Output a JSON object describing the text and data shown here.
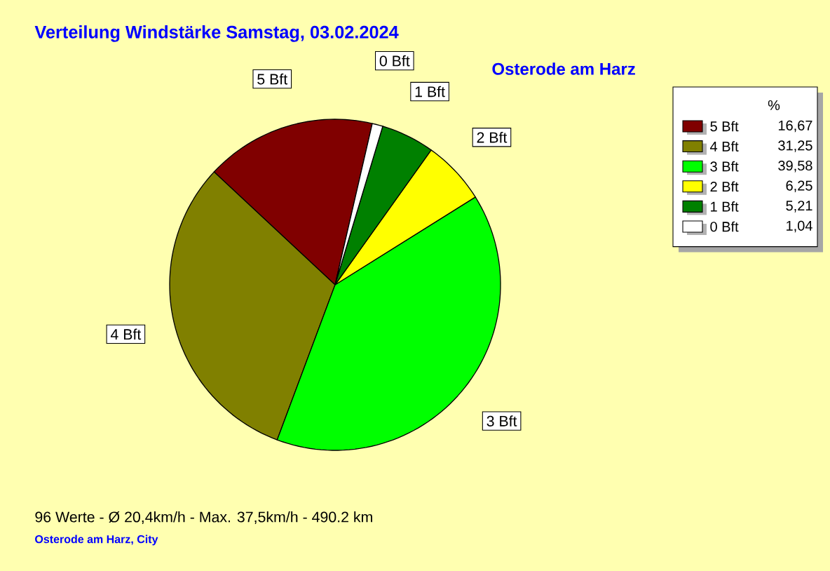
{
  "chart_data": {
    "type": "pie",
    "title": "Verteilung Windstärke  Samstag, 03.02.2024",
    "subtitle": "Osterode am Harz",
    "legend_title": "%",
    "categories": [
      "5 Bft",
      "4 Bft",
      "3 Bft",
      "2 Bft",
      "1 Bft",
      "0 Bft"
    ],
    "values": [
      16.67,
      31.25,
      39.58,
      6.25,
      5.21,
      1.04
    ],
    "value_labels": [
      "16,67",
      "31,25",
      "39,58",
      "6,25",
      "5,21",
      "1,04"
    ],
    "colors": [
      "#800000",
      "#808000",
      "#00ff00",
      "#ffff00",
      "#008000",
      "#ffffff"
    ],
    "legend": "top right",
    "annotations": [
      "96 Werte  -  Ø 20,4km/h  -  Max. 37,5km/h  -  490.2 km",
      "Osterode am Harz, City"
    ]
  }
}
